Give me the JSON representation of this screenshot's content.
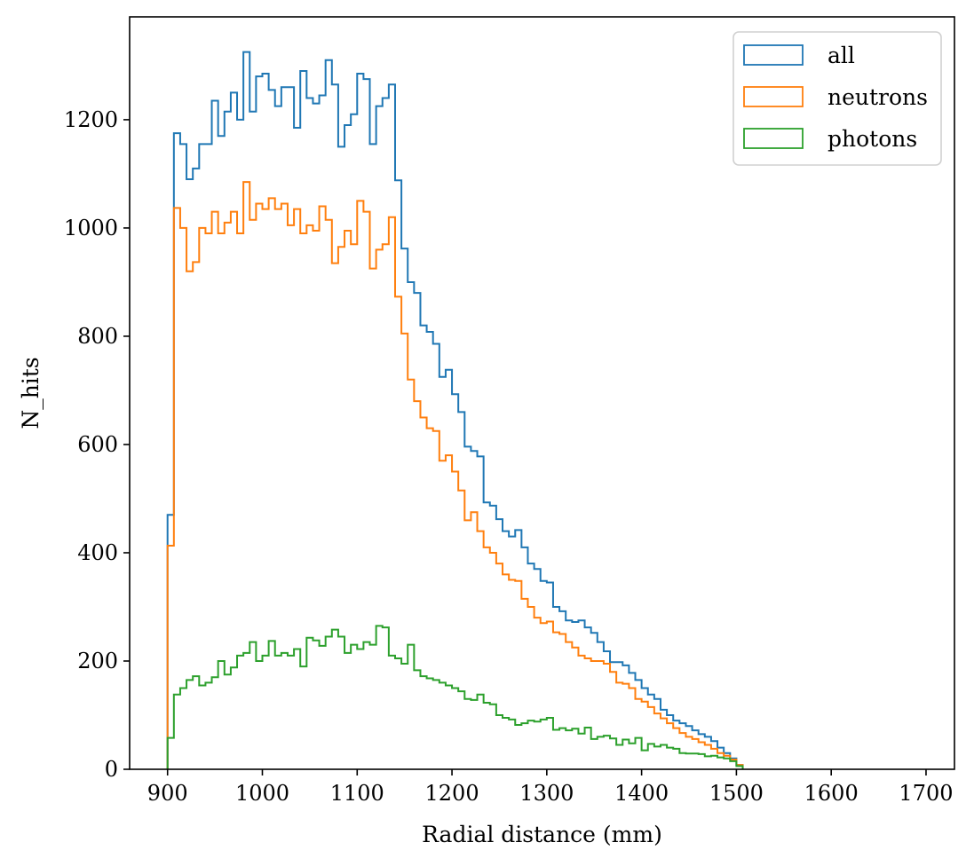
{
  "chart_data": {
    "type": "histogram-step",
    "title": "",
    "xlabel": "Radial distance (mm)",
    "ylabel": "N_hits",
    "xlim": [
      860,
      1730
    ],
    "ylim": [
      0,
      1390
    ],
    "x_ticks": [
      900,
      1000,
      1100,
      1200,
      1300,
      1400,
      1500,
      1600,
      1700
    ],
    "y_ticks": [
      0,
      200,
      400,
      600,
      800,
      1000,
      1200
    ],
    "bin_start": 900,
    "bin_width": 6.6667,
    "legend_position": "top-right",
    "series": [
      {
        "name": "all",
        "color": "#1f77b4",
        "values": [
          470,
          1175,
          1155,
          1090,
          1110,
          1155,
          1155,
          1235,
          1170,
          1215,
          1250,
          1200,
          1325,
          1215,
          1280,
          1285,
          1255,
          1225,
          1260,
          1260,
          1185,
          1290,
          1240,
          1230,
          1245,
          1310,
          1265,
          1150,
          1190,
          1210,
          1285,
          1275,
          1155,
          1225,
          1240,
          1265,
          1088,
          962,
          900,
          880,
          820,
          808,
          786,
          725,
          738,
          693,
          660,
          596,
          588,
          578,
          493,
          487,
          462,
          440,
          430,
          442,
          410,
          380,
          370,
          348,
          345,
          300,
          292,
          275,
          272,
          275,
          262,
          252,
          235,
          218,
          198,
          198,
          192,
          178,
          165,
          150,
          138,
          130,
          110,
          100,
          90,
          85,
          80,
          72,
          65,
          60,
          52,
          40,
          30,
          20,
          8
        ]
      },
      {
        "name": "neutrons",
        "color": "#ff7f0e",
        "values": [
          413,
          1037,
          1000,
          920,
          937,
          1000,
          990,
          1030,
          990,
          1010,
          1030,
          990,
          1085,
          1015,
          1045,
          1035,
          1055,
          1035,
          1045,
          1005,
          1035,
          990,
          1005,
          995,
          1040,
          1015,
          935,
          965,
          995,
          970,
          1050,
          1030,
          925,
          960,
          970,
          1020,
          873,
          805,
          720,
          680,
          650,
          630,
          625,
          570,
          580,
          550,
          515,
          460,
          475,
          440,
          410,
          400,
          380,
          360,
          350,
          348,
          315,
          300,
          280,
          270,
          273,
          253,
          250,
          235,
          225,
          210,
          205,
          200,
          200,
          195,
          180,
          160,
          158,
          150,
          130,
          125,
          115,
          103,
          94,
          85,
          76,
          67,
          60,
          56,
          50,
          45,
          38,
          30,
          25,
          18,
          8
        ]
      },
      {
        "name": "photons",
        "color": "#2ca02c",
        "values": [
          58,
          138,
          150,
          165,
          172,
          155,
          160,
          170,
          200,
          175,
          188,
          210,
          215,
          235,
          200,
          210,
          237,
          210,
          215,
          210,
          222,
          190,
          243,
          238,
          228,
          245,
          258,
          245,
          215,
          230,
          222,
          235,
          230,
          265,
          262,
          210,
          205,
          195,
          230,
          183,
          172,
          168,
          165,
          160,
          155,
          150,
          144,
          130,
          128,
          138,
          123,
          120,
          100,
          95,
          92,
          82,
          85,
          90,
          88,
          92,
          95,
          73,
          76,
          72,
          75,
          66,
          77,
          56,
          60,
          62,
          57,
          45,
          55,
          48,
          58,
          35,
          47,
          42,
          45,
          40,
          38,
          30,
          29,
          29,
          28,
          24,
          25,
          22,
          20,
          15,
          6
        ]
      }
    ]
  }
}
